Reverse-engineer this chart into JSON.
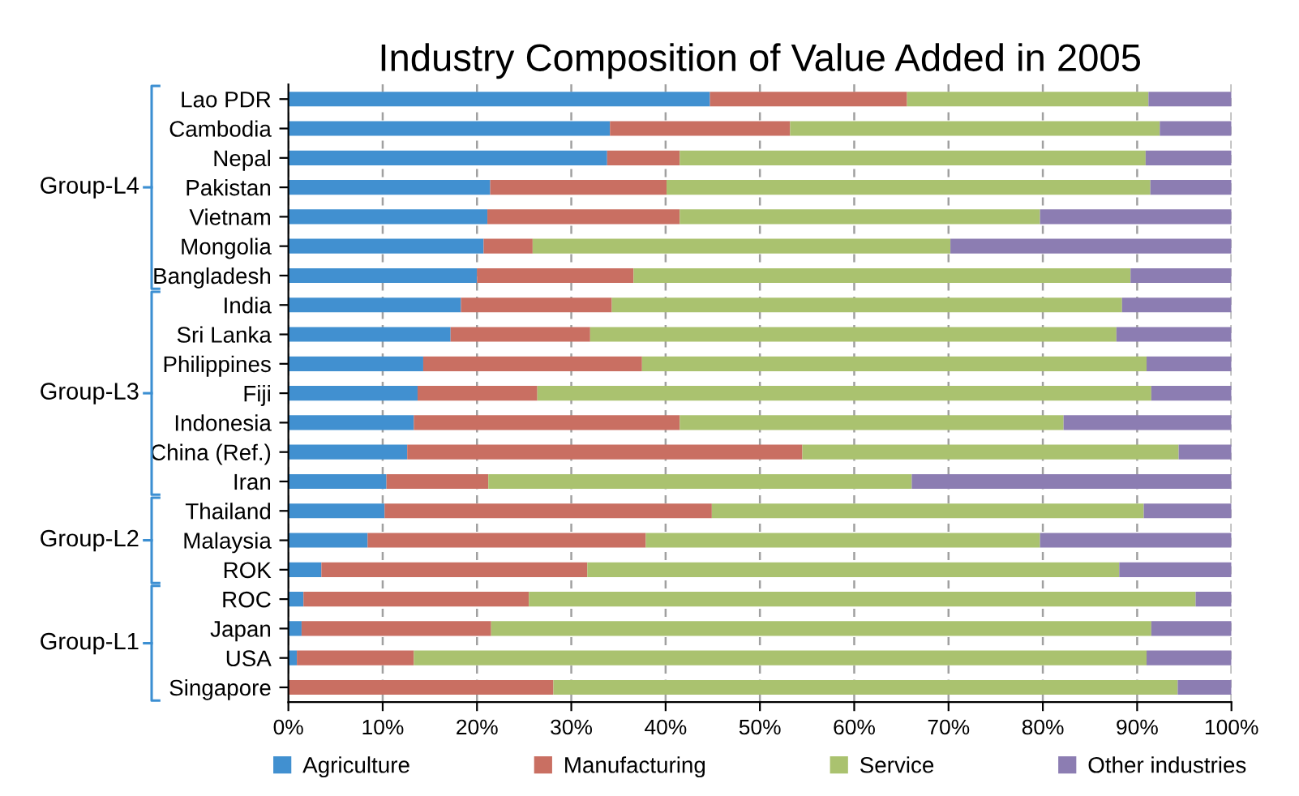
{
  "chart_data": {
    "type": "bar",
    "orientation": "horizontal",
    "stacked": true,
    "title": "Industry Composition of Value Added in 2005",
    "categories": [
      "Lao PDR",
      "Cambodia",
      "Nepal",
      "Pakistan",
      "Vietnam",
      "Mongolia",
      "Bangladesh",
      "India",
      "Sri Lanka",
      "Philippines",
      "Fiji",
      "Indonesia",
      "China (Ref.)",
      "Iran",
      "Thailand",
      "Malaysia",
      "ROK",
      "ROC",
      "Japan",
      "USA",
      "Singapore"
    ],
    "series": [
      {
        "name": "Agriculture",
        "color": "#4190d0",
        "values": [
          44.7,
          34.1,
          33.8,
          21.4,
          21.1,
          20.7,
          20.0,
          18.3,
          17.2,
          14.3,
          13.7,
          13.3,
          12.6,
          10.4,
          10.2,
          8.4,
          3.5,
          1.6,
          1.4,
          0.9,
          0
        ]
      },
      {
        "name": "Manufacturing",
        "color": "#c96f62",
        "values": [
          20.9,
          19.1,
          7.7,
          18.7,
          20.4,
          5.2,
          16.6,
          16.0,
          14.8,
          23.2,
          12.7,
          28.2,
          41.9,
          10.8,
          34.7,
          29.5,
          28.2,
          23.9,
          20.1,
          12.4,
          28.1
        ]
      },
      {
        "name": "Service",
        "color": "#aac26f",
        "values": [
          25.6,
          39.2,
          49.4,
          51.3,
          38.2,
          44.3,
          52.7,
          54.1,
          55.8,
          53.5,
          65.1,
          40.7,
          39.9,
          44.9,
          45.8,
          41.8,
          56.4,
          70.7,
          70.0,
          77.7,
          66.2
        ]
      },
      {
        "name": "Other industries",
        "color": "#8c7db2",
        "values": [
          8.8,
          7.6,
          9.1,
          8.6,
          20.3,
          29.8,
          10.7,
          11.6,
          12.2,
          9.0,
          8.5,
          17.8,
          5.6,
          33.9,
          9.3,
          20.3,
          11.9,
          3.8,
          8.5,
          9.0,
          5.7
        ]
      }
    ],
    "xlim": [
      0,
      100
    ],
    "xticks": [
      {
        "value": 0,
        "label": "0%"
      },
      {
        "value": 10,
        "label": "10%"
      },
      {
        "value": 20,
        "label": "20%"
      },
      {
        "value": 30,
        "label": "30%"
      },
      {
        "value": 40,
        "label": "40%"
      },
      {
        "value": 50,
        "label": "50%"
      },
      {
        "value": 60,
        "label": "60%"
      },
      {
        "value": 70,
        "label": "70%"
      },
      {
        "value": 80,
        "label": "80%"
      },
      {
        "value": 90,
        "label": "90%"
      },
      {
        "value": 100,
        "label": "100%"
      }
    ],
    "grid": "x",
    "legend": "bottom",
    "annotations": [
      "Group-L4",
      "Group-L3",
      "Group-L2",
      "Group-L1"
    ]
  }
}
